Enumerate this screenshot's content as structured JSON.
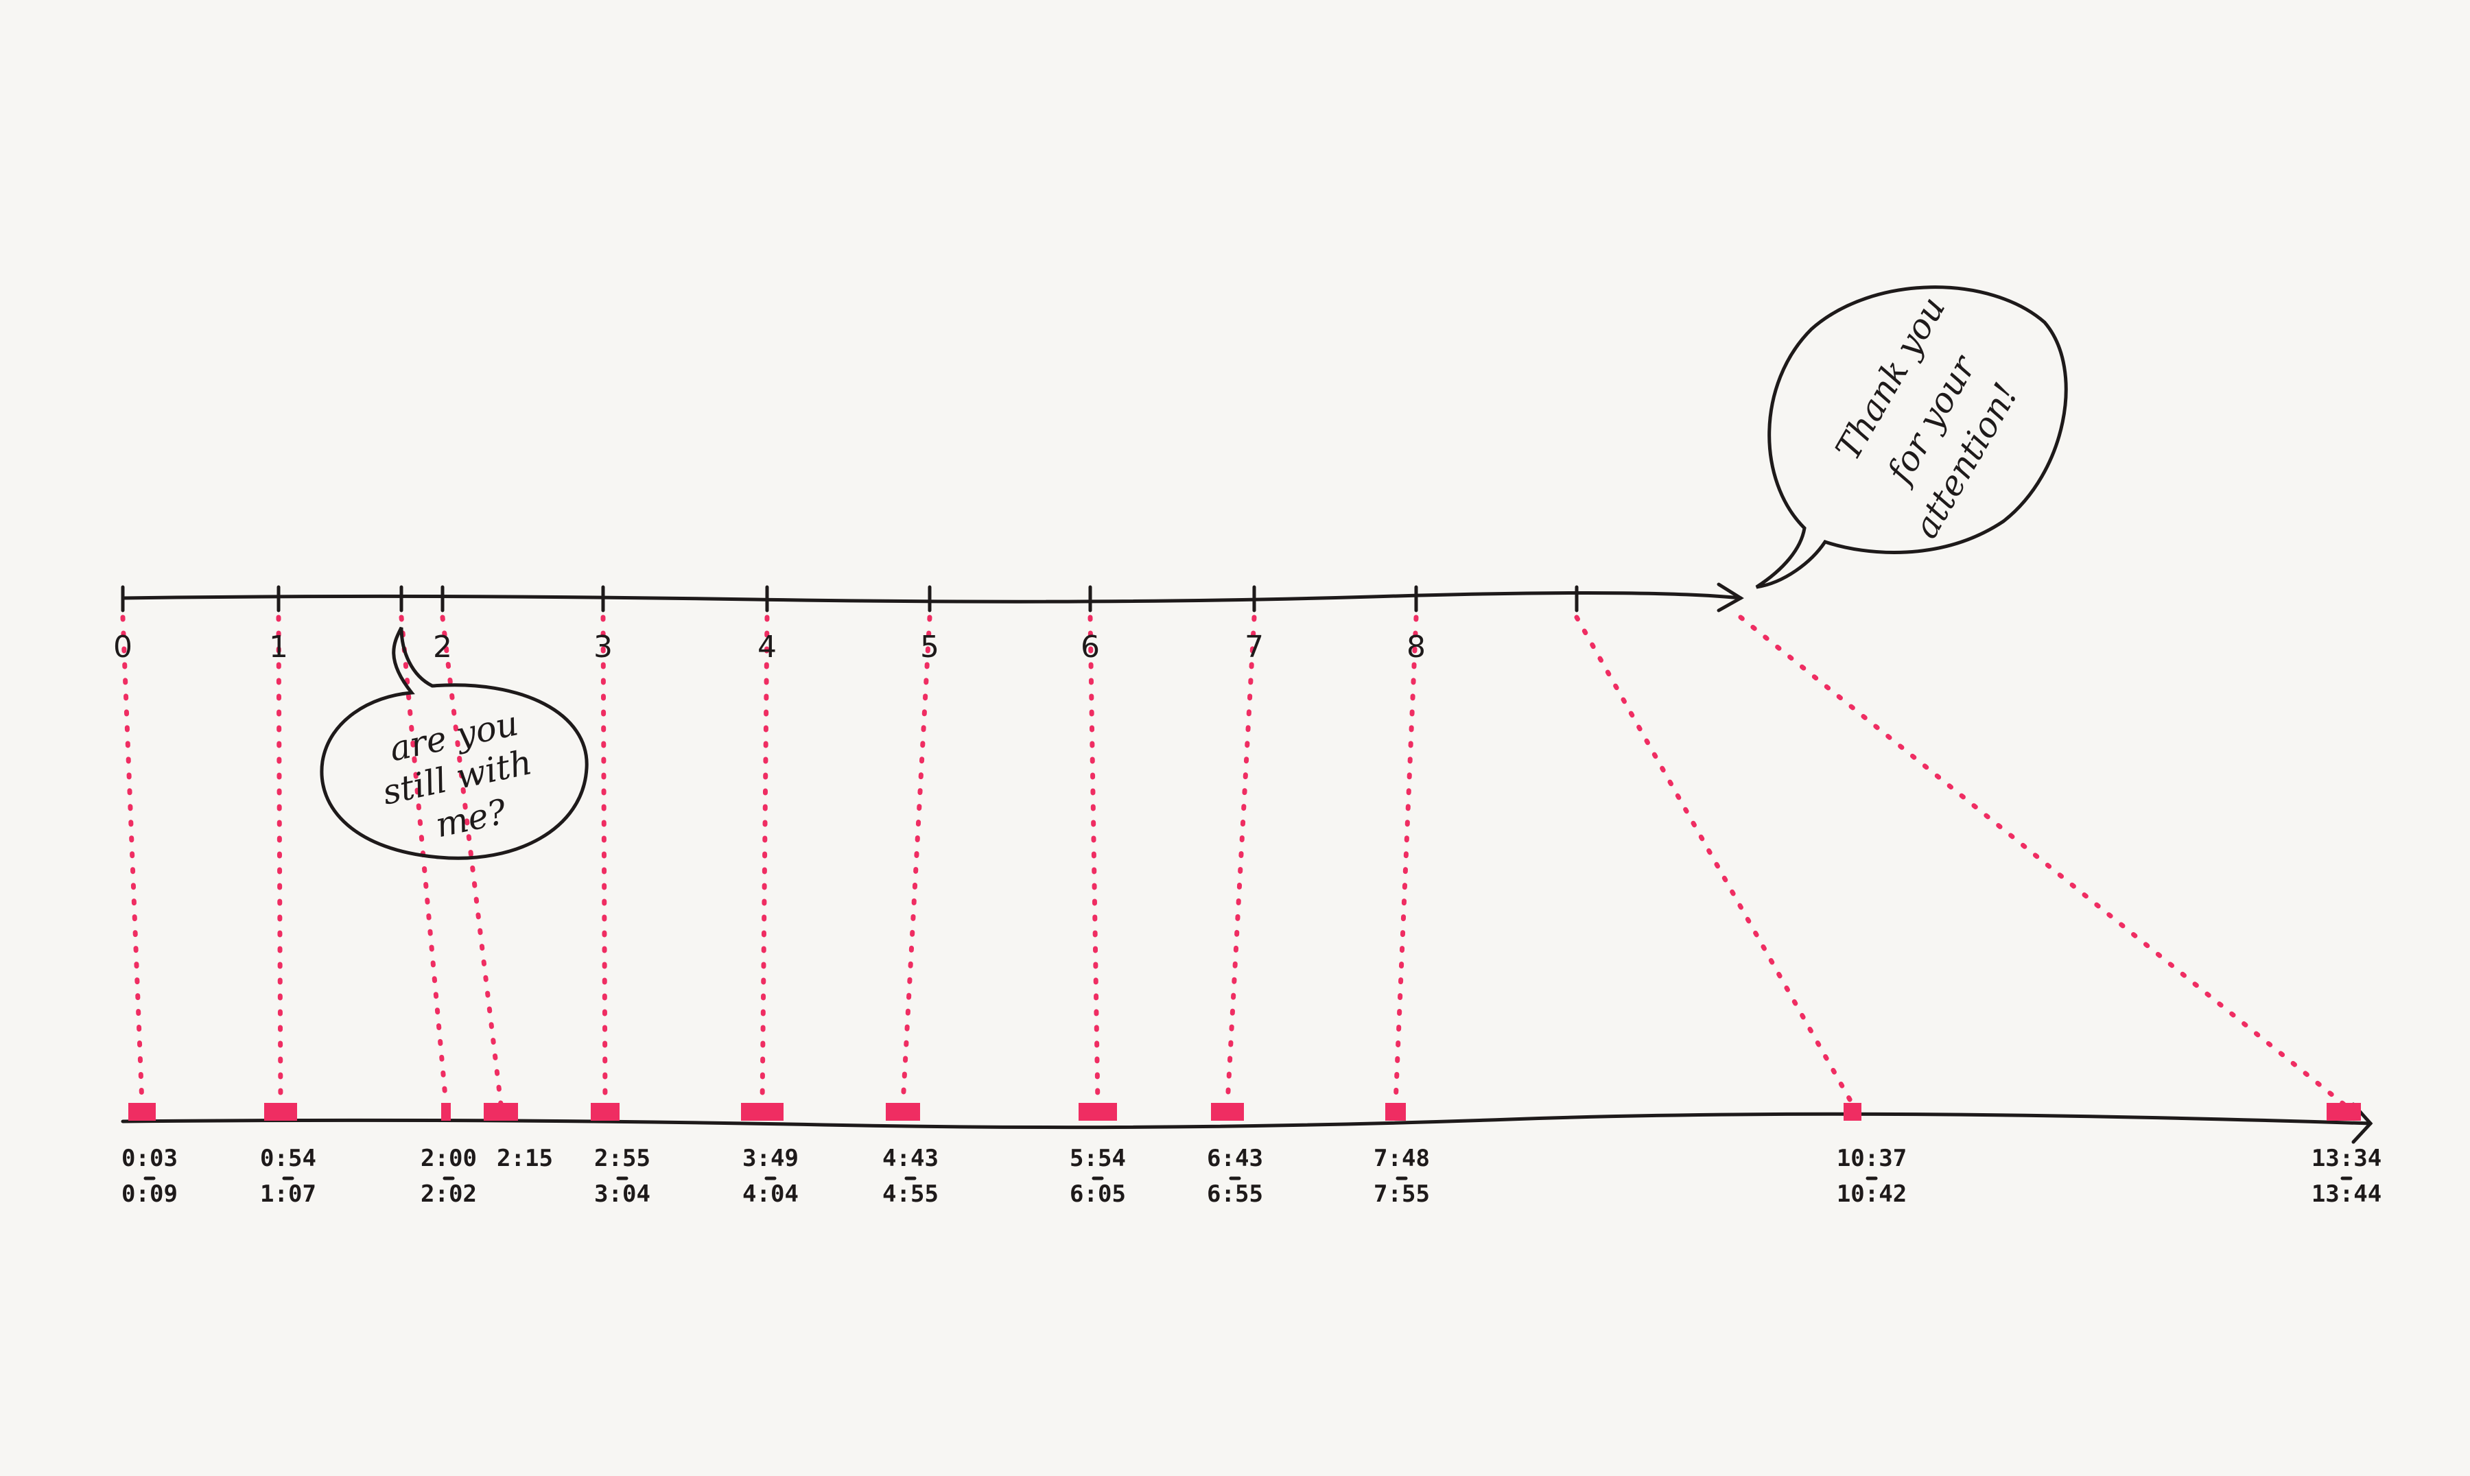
{
  "top_axis": {
    "labels": [
      "0",
      "1",
      "",
      "2",
      "3",
      "4",
      "5",
      "6",
      "7",
      "8",
      ""
    ]
  },
  "segments": [
    {
      "start": "0:03",
      "end": "0:09"
    },
    {
      "start": "0:54",
      "end": "1:07"
    },
    {
      "start": "2:00",
      "end": "2:02"
    },
    {
      "start": "2:15",
      "end": ""
    },
    {
      "start": "2:55",
      "end": "3:04"
    },
    {
      "start": "3:49",
      "end": "4:04"
    },
    {
      "start": "4:43",
      "end": "4:55"
    },
    {
      "start": "5:54",
      "end": "6:05"
    },
    {
      "start": "6:43",
      "end": "6:55"
    },
    {
      "start": "7:48",
      "end": "7:55"
    },
    {
      "start": "10:37",
      "end": "10:42"
    },
    {
      "start": "13:34",
      "end": "13:44"
    }
  ],
  "bubbles": {
    "still_with_me": [
      "are you",
      "still with",
      "me?"
    ],
    "thank_you": [
      "Thank you",
      "for your",
      "attention!"
    ]
  },
  "colors": {
    "ink": "#1e1a1a",
    "highlight": "#ef2d62",
    "paper": "#f7f6f3"
  }
}
